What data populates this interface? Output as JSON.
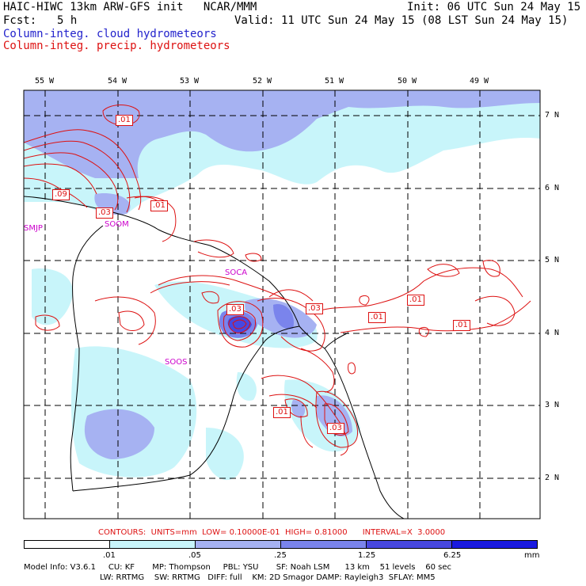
{
  "header": {
    "title": "HAIC-HIWC 13km ARW-GFS init   NCAR/MMM",
    "init": "Init: 06 UTC Sun 24 May 15",
    "fcst_label": "Fcst:",
    "fcst_value": "5 h",
    "valid": "Valid: 11 UTC Sun 24 May 15 (08 LST Sun 24 May 15)",
    "field_cloud": "Column-integ. cloud hydrometeors",
    "field_precip": "Column-integ. precip. hydrometeors"
  },
  "map": {
    "lon_labels": [
      "55 W",
      "54 W",
      "53 W",
      "52 W",
      "51 W",
      "50 W",
      "49 W"
    ],
    "lat_labels": [
      "7 N",
      "6 N",
      "5 N",
      "4 N",
      "3 N",
      "2 N"
    ],
    "stations": [
      "SMJP",
      "SOCA",
      "SOOM",
      "SOOS"
    ],
    "contour_labels": [
      ".01",
      ".09",
      ".03",
      ".01",
      ".03",
      ".03",
      ".01",
      ".01",
      ".01",
      ".01",
      ".03"
    ],
    "colors": {
      "cloud_1": "#c8f5fa",
      "cloud_2": "#a6b2f2",
      "cloud_3": "#7a84ec",
      "cloud_4": "#4848e0",
      "contour": "#dd1111",
      "coast": "#000000"
    }
  },
  "contour_info": "CONTOURS:  UNITS=mm  LOW= 0.10000E-01  HIGH= 0.81000      INTERVAL=X  3.0000",
  "colorbar": {
    "labels": [
      ".01",
      ".05",
      ".25",
      "1.25",
      "6.25",
      "mm"
    ],
    "colors": [
      "#ffffff",
      "#c8f5fa",
      "#a6b2f2",
      "#7a84ec",
      "#4848e0",
      "#1a1ae0"
    ]
  },
  "footer": {
    "line1": "Model Info: V3.6.1     CU: KF       MP: Thompson     PBL: YSU       SF: Noah LSM      13 km    51 levels    60 sec",
    "line2": "LW: RRTMG    SW: RRTMG   DIFF: full    KM: 2D Smagor DAMP: Rayleigh3  SFLAY: MM5"
  }
}
